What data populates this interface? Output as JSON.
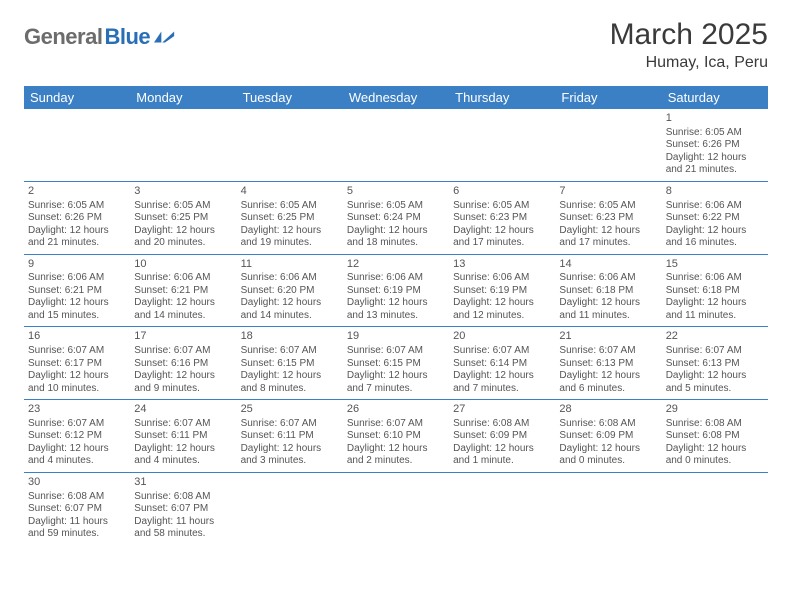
{
  "brand": {
    "gray": "General",
    "blue": "Blue"
  },
  "title": "March 2025",
  "location": "Humay, Ica, Peru",
  "colors": {
    "header_bg": "#3b7fc4",
    "header_text": "#ffffff",
    "rule": "#3b7fc4",
    "brand_gray": "#6c6c6c",
    "brand_blue": "#2a6fb5",
    "body_text": "#555555"
  },
  "daynames": [
    "Sunday",
    "Monday",
    "Tuesday",
    "Wednesday",
    "Thursday",
    "Friday",
    "Saturday"
  ],
  "weeks": [
    [
      null,
      null,
      null,
      null,
      null,
      null,
      {
        "n": "1",
        "sr": "6:05 AM",
        "ss": "6:26 PM",
        "dl": "12 hours and 21 minutes."
      }
    ],
    [
      {
        "n": "2",
        "sr": "6:05 AM",
        "ss": "6:26 PM",
        "dl": "12 hours and 21 minutes."
      },
      {
        "n": "3",
        "sr": "6:05 AM",
        "ss": "6:25 PM",
        "dl": "12 hours and 20 minutes."
      },
      {
        "n": "4",
        "sr": "6:05 AM",
        "ss": "6:25 PM",
        "dl": "12 hours and 19 minutes."
      },
      {
        "n": "5",
        "sr": "6:05 AM",
        "ss": "6:24 PM",
        "dl": "12 hours and 18 minutes."
      },
      {
        "n": "6",
        "sr": "6:05 AM",
        "ss": "6:23 PM",
        "dl": "12 hours and 17 minutes."
      },
      {
        "n": "7",
        "sr": "6:05 AM",
        "ss": "6:23 PM",
        "dl": "12 hours and 17 minutes."
      },
      {
        "n": "8",
        "sr": "6:06 AM",
        "ss": "6:22 PM",
        "dl": "12 hours and 16 minutes."
      }
    ],
    [
      {
        "n": "9",
        "sr": "6:06 AM",
        "ss": "6:21 PM",
        "dl": "12 hours and 15 minutes."
      },
      {
        "n": "10",
        "sr": "6:06 AM",
        "ss": "6:21 PM",
        "dl": "12 hours and 14 minutes."
      },
      {
        "n": "11",
        "sr": "6:06 AM",
        "ss": "6:20 PM",
        "dl": "12 hours and 14 minutes."
      },
      {
        "n": "12",
        "sr": "6:06 AM",
        "ss": "6:19 PM",
        "dl": "12 hours and 13 minutes."
      },
      {
        "n": "13",
        "sr": "6:06 AM",
        "ss": "6:19 PM",
        "dl": "12 hours and 12 minutes."
      },
      {
        "n": "14",
        "sr": "6:06 AM",
        "ss": "6:18 PM",
        "dl": "12 hours and 11 minutes."
      },
      {
        "n": "15",
        "sr": "6:06 AM",
        "ss": "6:18 PM",
        "dl": "12 hours and 11 minutes."
      }
    ],
    [
      {
        "n": "16",
        "sr": "6:07 AM",
        "ss": "6:17 PM",
        "dl": "12 hours and 10 minutes."
      },
      {
        "n": "17",
        "sr": "6:07 AM",
        "ss": "6:16 PM",
        "dl": "12 hours and 9 minutes."
      },
      {
        "n": "18",
        "sr": "6:07 AM",
        "ss": "6:15 PM",
        "dl": "12 hours and 8 minutes."
      },
      {
        "n": "19",
        "sr": "6:07 AM",
        "ss": "6:15 PM",
        "dl": "12 hours and 7 minutes."
      },
      {
        "n": "20",
        "sr": "6:07 AM",
        "ss": "6:14 PM",
        "dl": "12 hours and 7 minutes."
      },
      {
        "n": "21",
        "sr": "6:07 AM",
        "ss": "6:13 PM",
        "dl": "12 hours and 6 minutes."
      },
      {
        "n": "22",
        "sr": "6:07 AM",
        "ss": "6:13 PM",
        "dl": "12 hours and 5 minutes."
      }
    ],
    [
      {
        "n": "23",
        "sr": "6:07 AM",
        "ss": "6:12 PM",
        "dl": "12 hours and 4 minutes."
      },
      {
        "n": "24",
        "sr": "6:07 AM",
        "ss": "6:11 PM",
        "dl": "12 hours and 4 minutes."
      },
      {
        "n": "25",
        "sr": "6:07 AM",
        "ss": "6:11 PM",
        "dl": "12 hours and 3 minutes."
      },
      {
        "n": "26",
        "sr": "6:07 AM",
        "ss": "6:10 PM",
        "dl": "12 hours and 2 minutes."
      },
      {
        "n": "27",
        "sr": "6:08 AM",
        "ss": "6:09 PM",
        "dl": "12 hours and 1 minute."
      },
      {
        "n": "28",
        "sr": "6:08 AM",
        "ss": "6:09 PM",
        "dl": "12 hours and 0 minutes."
      },
      {
        "n": "29",
        "sr": "6:08 AM",
        "ss": "6:08 PM",
        "dl": "12 hours and 0 minutes."
      }
    ],
    [
      {
        "n": "30",
        "sr": "6:08 AM",
        "ss": "6:07 PM",
        "dl": "11 hours and 59 minutes."
      },
      {
        "n": "31",
        "sr": "6:08 AM",
        "ss": "6:07 PM",
        "dl": "11 hours and 58 minutes."
      },
      null,
      null,
      null,
      null,
      null
    ]
  ],
  "labels": {
    "sunrise": "Sunrise:",
    "sunset": "Sunset:",
    "daylight": "Daylight:"
  }
}
